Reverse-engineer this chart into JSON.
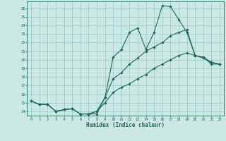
{
  "title": "",
  "xlabel": "Humidex (Indice chaleur)",
  "ylabel": "",
  "xlim": [
    -0.5,
    23.5
  ],
  "ylim": [
    13.5,
    26.8
  ],
  "yticks": [
    14,
    15,
    16,
    17,
    18,
    19,
    20,
    21,
    22,
    23,
    24,
    25,
    26
  ],
  "xticks": [
    0,
    1,
    2,
    3,
    4,
    5,
    6,
    7,
    8,
    9,
    10,
    11,
    12,
    13,
    14,
    15,
    16,
    17,
    18,
    19,
    20,
    21,
    22,
    23
  ],
  "bg_color": "#cce8e4",
  "line_color": "#1a6b5a",
  "grid_color": "#8abdb7",
  "line1_x": [
    0,
    1,
    2,
    3,
    4,
    5,
    6,
    7,
    8,
    9,
    10,
    11,
    12,
    13,
    14,
    15,
    16,
    17,
    18,
    19,
    20,
    21,
    22,
    23
  ],
  "line1_y": [
    15.2,
    14.8,
    14.8,
    14.0,
    14.2,
    14.3,
    13.7,
    13.7,
    13.7,
    15.6,
    20.3,
    21.2,
    23.2,
    23.7,
    21.2,
    23.2,
    26.3,
    26.2,
    24.7,
    23.2,
    20.5,
    20.3,
    19.5,
    19.5
  ],
  "line2_x": [
    0,
    1,
    2,
    3,
    4,
    5,
    6,
    7,
    8,
    9,
    10,
    11,
    12,
    13,
    14,
    15,
    16,
    17,
    18,
    19,
    20,
    21,
    22,
    23
  ],
  "line2_y": [
    15.2,
    14.8,
    14.8,
    14.0,
    14.2,
    14.3,
    13.7,
    13.7,
    14.0,
    15.6,
    17.8,
    18.5,
    19.5,
    20.2,
    21.0,
    21.5,
    22.0,
    22.8,
    23.2,
    23.5,
    20.5,
    20.3,
    19.7,
    19.5
  ],
  "line3_x": [
    0,
    1,
    2,
    3,
    4,
    5,
    6,
    7,
    8,
    9,
    10,
    11,
    12,
    13,
    14,
    15,
    16,
    17,
    18,
    19,
    20,
    21,
    22,
    23
  ],
  "line3_y": [
    15.2,
    14.8,
    14.8,
    14.0,
    14.2,
    14.3,
    13.7,
    13.7,
    14.0,
    15.0,
    16.2,
    16.8,
    17.2,
    17.8,
    18.3,
    19.0,
    19.5,
    20.0,
    20.5,
    20.8,
    20.5,
    20.2,
    19.7,
    19.5
  ]
}
